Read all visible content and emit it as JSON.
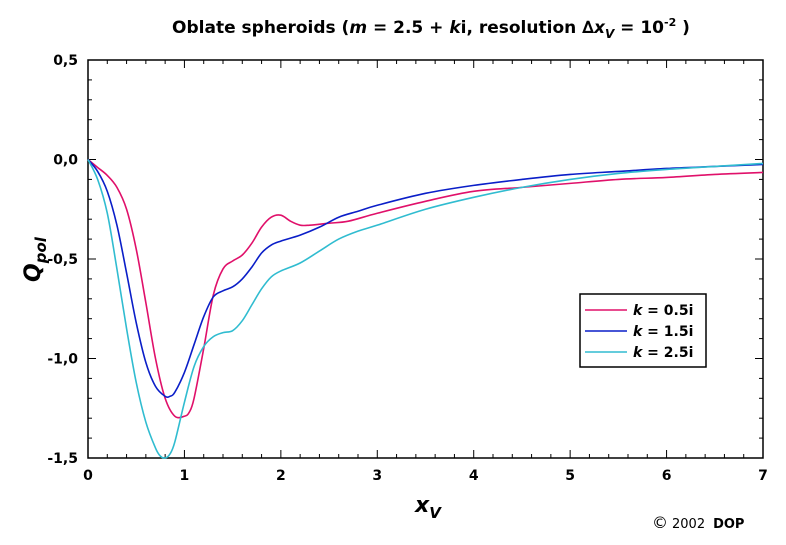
{
  "chart_data": {
    "type": "line",
    "title_main": "Oblate spheroids (",
    "title_m": "m",
    "title_eq": " = 2.5 + ",
    "title_k": "k",
    "title_i_res": "i, resolution ",
    "title_delta": "∆",
    "title_x": "x",
    "title_xsub": "V",
    "title_eq2": " = 10",
    "title_exp": "-2",
    "title_close": " )",
    "xlabel": "x",
    "xlabel_sub": "V",
    "ylabel": "Q",
    "ylabel_sub": "pol",
    "xlim": [
      0,
      7
    ],
    "ylim": [
      -1.5,
      0.5
    ],
    "x_ticks": [
      "0",
      "1",
      "2",
      "3",
      "4",
      "5",
      "6",
      "7"
    ],
    "y_ticks": [
      "0,5",
      "0,0",
      "-0,5",
      "-1,0",
      "-1,5"
    ],
    "legend_position": "center-right",
    "grid": false,
    "series": [
      {
        "name": "k = 0.5i",
        "label_k": "k",
        "label_rest": " = 0.5i",
        "color": "#e0106a",
        "x": [
          0,
          0.1,
          0.2,
          0.3,
          0.4,
          0.5,
          0.6,
          0.7,
          0.8,
          0.9,
          1.0,
          1.05,
          1.1,
          1.2,
          1.3,
          1.4,
          1.5,
          1.6,
          1.7,
          1.8,
          1.9,
          2.0,
          2.1,
          2.2,
          2.3,
          2.5,
          2.7,
          3.0,
          3.5,
          4.0,
          4.5,
          5.0,
          5.5,
          6.0,
          6.5,
          7.0
        ],
        "y": [
          0,
          -0.04,
          -0.08,
          -0.14,
          -0.25,
          -0.45,
          -0.72,
          -1.0,
          -1.2,
          -1.29,
          -1.29,
          -1.27,
          -1.2,
          -0.95,
          -0.68,
          -0.55,
          -0.51,
          -0.48,
          -0.42,
          -0.34,
          -0.29,
          -0.28,
          -0.31,
          -0.33,
          -0.33,
          -0.32,
          -0.31,
          -0.27,
          -0.21,
          -0.16,
          -0.14,
          -0.12,
          -0.1,
          -0.09,
          -0.075,
          -0.065
        ]
      },
      {
        "name": "k = 1.5i",
        "label_k": "k",
        "label_rest": " = 1.5i",
        "color": "#0a1ec8",
        "x": [
          0,
          0.1,
          0.2,
          0.3,
          0.4,
          0.5,
          0.6,
          0.7,
          0.8,
          0.85,
          0.9,
          1.0,
          1.1,
          1.2,
          1.3,
          1.4,
          1.5,
          1.6,
          1.7,
          1.8,
          1.9,
          2.0,
          2.2,
          2.4,
          2.6,
          2.8,
          3.0,
          3.5,
          4.0,
          4.5,
          5.0,
          5.5,
          6.0,
          6.5,
          7.0
        ],
        "y": [
          0,
          -0.06,
          -0.16,
          -0.33,
          -0.57,
          -0.82,
          -1.02,
          -1.14,
          -1.19,
          -1.19,
          -1.17,
          -1.07,
          -0.93,
          -0.79,
          -0.69,
          -0.66,
          -0.64,
          -0.6,
          -0.54,
          -0.47,
          -0.43,
          -0.41,
          -0.38,
          -0.34,
          -0.29,
          -0.26,
          -0.23,
          -0.17,
          -0.13,
          -0.1,
          -0.075,
          -0.06,
          -0.045,
          -0.035,
          -0.025
        ]
      },
      {
        "name": "k = 2.5i",
        "label_k": "k",
        "label_rest": " = 2.5i",
        "color": "#30bcd0",
        "x": [
          0,
          0.1,
          0.2,
          0.3,
          0.4,
          0.5,
          0.6,
          0.7,
          0.75,
          0.8,
          0.85,
          0.9,
          1.0,
          1.1,
          1.2,
          1.3,
          1.4,
          1.5,
          1.6,
          1.7,
          1.8,
          1.9,
          2.0,
          2.2,
          2.4,
          2.6,
          2.8,
          3.0,
          3.5,
          4.0,
          4.5,
          5.0,
          5.5,
          6.0,
          6.5,
          7.0
        ],
        "y": [
          0,
          -0.1,
          -0.27,
          -0.55,
          -0.85,
          -1.12,
          -1.32,
          -1.45,
          -1.49,
          -1.5,
          -1.48,
          -1.42,
          -1.22,
          -1.04,
          -0.94,
          -0.89,
          -0.87,
          -0.86,
          -0.81,
          -0.73,
          -0.65,
          -0.59,
          -0.56,
          -0.52,
          -0.46,
          -0.4,
          -0.36,
          -0.33,
          -0.25,
          -0.19,
          -0.14,
          -0.1,
          -0.07,
          -0.05,
          -0.035,
          -0.02
        ]
      }
    ]
  },
  "copyright": {
    "symbol": "©",
    "year": "2002",
    "owner": "DOP"
  }
}
